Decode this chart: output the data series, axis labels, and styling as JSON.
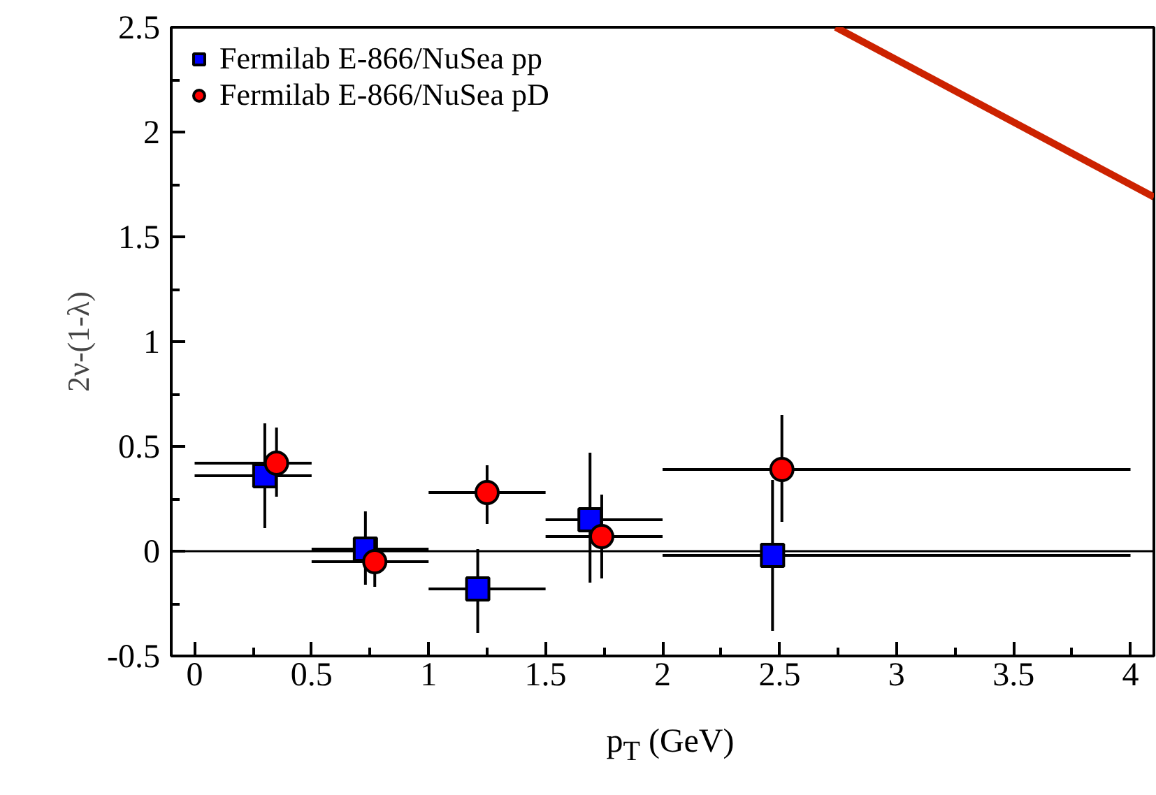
{
  "chart_data": {
    "type": "scatter",
    "xlabel": "p$_{T}$ (GeV)",
    "ylabel": "2ν-(1-λ)",
    "xlim": [
      -0.1,
      4.1
    ],
    "ylim": [
      -0.5,
      2.5
    ],
    "xticks": [
      0,
      0.5,
      1,
      1.5,
      2,
      2.5,
      3,
      3.5,
      4
    ],
    "yticks": [
      -0.5,
      0,
      0.5,
      1,
      1.5,
      2,
      2.5
    ],
    "legend": "top left",
    "grid": false,
    "series": [
      {
        "name": "Fermilab E-866/NuSea pp",
        "color": "#0000ff",
        "marker": "square",
        "x": [
          0.3,
          0.73,
          1.21,
          1.69,
          2.47
        ],
        "values": [
          0.36,
          0.01,
          -0.18,
          0.15,
          -0.02
        ],
        "errors": [
          [
            0.11,
            0.61
          ],
          [
            -0.16,
            0.19
          ],
          [
            -0.39,
            0.01
          ],
          [
            -0.15,
            0.47
          ],
          [
            -0.38,
            0.34
          ]
        ],
        "xerrors": [
          [
            0,
            0.5
          ],
          [
            0.5,
            1
          ],
          [
            1,
            1.5
          ],
          [
            1.5,
            2
          ],
          [
            2,
            4
          ]
        ]
      },
      {
        "name": "Fermilab E-866/NuSea pD",
        "color": "#ff0000",
        "marker": "circle",
        "x": [
          0.35,
          0.77,
          1.25,
          1.74,
          2.51
        ],
        "values": [
          0.42,
          -0.05,
          0.28,
          0.07,
          0.39
        ],
        "errors": [
          [
            0.26,
            0.59
          ],
          [
            -0.17,
            0.07
          ],
          [
            0.13,
            0.41
          ],
          [
            -0.13,
            0.27
          ],
          [
            0.14,
            0.65
          ]
        ],
        "xerrors": [
          [
            0,
            0.5
          ],
          [
            0.5,
            1
          ],
          [
            1,
            1.5
          ],
          [
            1.5,
            2
          ],
          [
            2,
            4
          ]
        ]
      },
      {
        "type": "line",
        "color": "#cc2200",
        "x": [
          2.74,
          4.1
        ],
        "values": [
          2.5,
          1.69
        ]
      }
    ],
    "ref_lines": [
      {
        "axis": "y",
        "value": 0,
        "color": "#000000"
      }
    ]
  }
}
